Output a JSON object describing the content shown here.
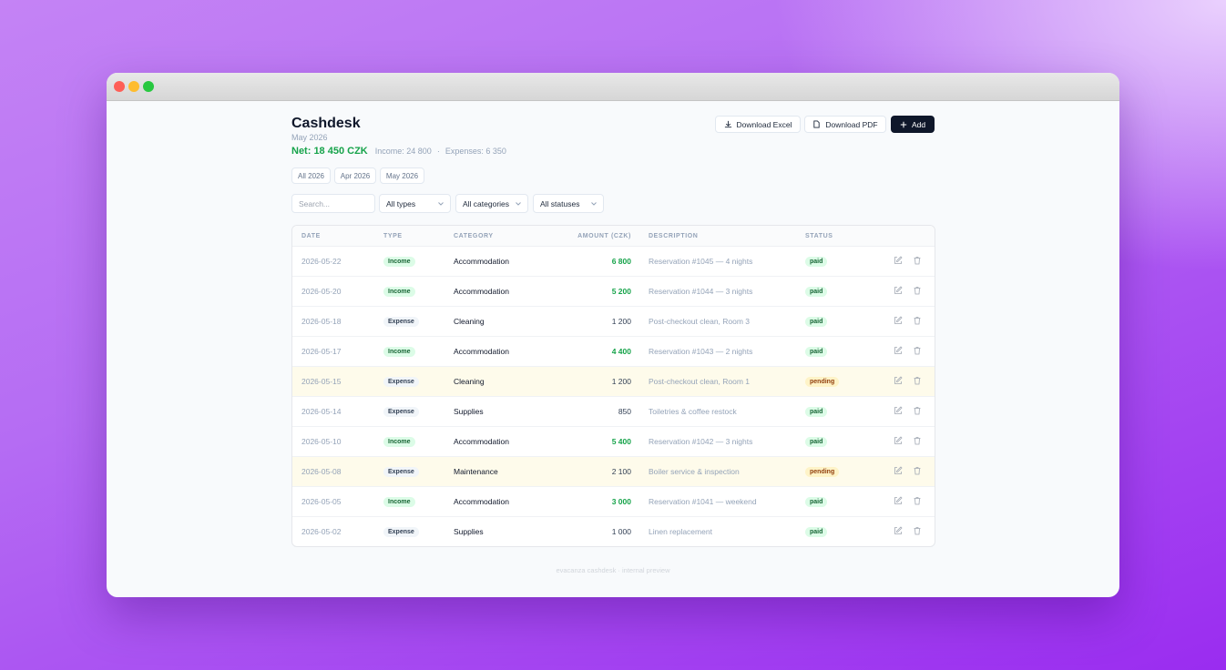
{
  "header": {
    "title": "Cashdesk",
    "subtitle": "May 2026",
    "net": "Net: 18 450 CZK",
    "income": "Income: 24 800",
    "separator": "·",
    "expenses": "Expenses: 6 350"
  },
  "actions": {
    "excel": "Download Excel",
    "pdf": "Download PDF",
    "add": "Add"
  },
  "tabs": {
    "items": [
      "All 2026",
      "Apr 2026",
      "May 2026"
    ],
    "active": 2
  },
  "filters": {
    "search": "Search...",
    "types": "All types",
    "categories": "All categories",
    "statuses": "All statuses"
  },
  "table": {
    "columns": [
      "DATE",
      "TYPE",
      "CATEGORY",
      "AMOUNT (CZK)",
      "DESCRIPTION",
      "STATUS"
    ],
    "rows": [
      [
        "2026-05-22",
        "Income",
        "Accommodation",
        "6 800",
        "Reservation #1045 — 4 nights",
        "paid"
      ],
      [
        "2026-05-20",
        "Income",
        "Accommodation",
        "5 200",
        "Reservation #1044 — 3 nights",
        "paid"
      ],
      [
        "2026-05-18",
        "Expense",
        "Cleaning",
        "1 200",
        "Post-checkout clean, Room 3",
        "paid"
      ],
      [
        "2026-05-17",
        "Income",
        "Accommodation",
        "4 400",
        "Reservation #1043 — 2 nights",
        "paid"
      ],
      [
        "2026-05-15",
        "Expense",
        "Cleaning",
        "1 200",
        "Post-checkout clean, Room 1",
        "pending"
      ],
      [
        "2026-05-14",
        "Expense",
        "Supplies",
        "850",
        "Toiletries & coffee restock",
        "paid"
      ],
      [
        "2026-05-10",
        "Income",
        "Accommodation",
        "5 400",
        "Reservation #1042 — 3 nights",
        "paid"
      ],
      [
        "2026-05-08",
        "Expense",
        "Maintenance",
        "2 100",
        "Boiler service & inspection",
        "pending"
      ],
      [
        "2026-05-05",
        "Income",
        "Accommodation",
        "3 000",
        "Reservation #1041 — weekend",
        "paid"
      ],
      [
        "2026-05-02",
        "Expense",
        "Supplies",
        "1 000",
        "Linen replacement",
        "paid"
      ]
    ]
  },
  "footer": "evacanza cashdesk · internal preview"
}
